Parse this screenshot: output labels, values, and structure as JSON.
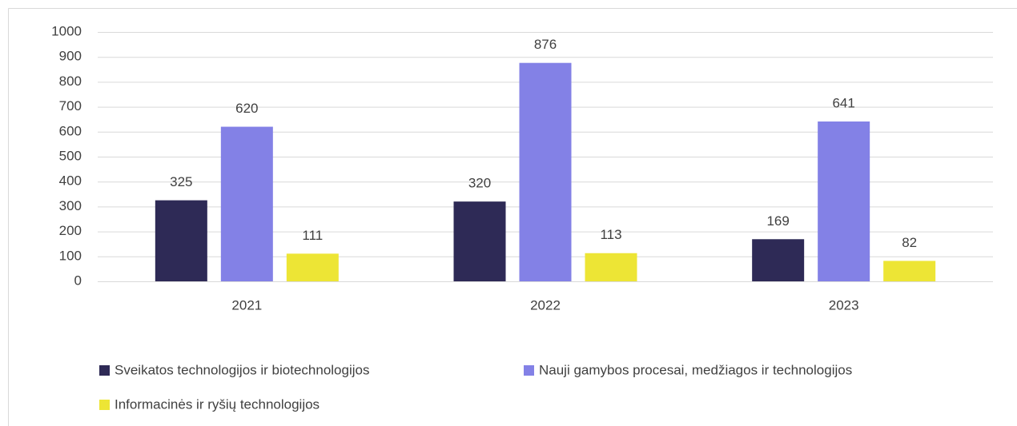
{
  "chart_data": {
    "type": "bar",
    "categories": [
      "2021",
      "2022",
      "2023"
    ],
    "series": [
      {
        "name": "Sveikatos technologijos ir biotechnologijos",
        "color": "#2e2a56",
        "values": [
          325,
          320,
          169
        ]
      },
      {
        "name": "Nauji gamybos procesai, medžiagos ir technologijos",
        "color": "#8381e6",
        "values": [
          620,
          876,
          641
        ]
      },
      {
        "name": "Informacinės ir ryšių technologijos",
        "color": "#ede535",
        "values": [
          111,
          113,
          82
        ]
      }
    ],
    "ylim": [
      0,
      1000
    ],
    "yticks": [
      0,
      100,
      200,
      300,
      400,
      500,
      600,
      700,
      800,
      900,
      1000
    ],
    "grid": true,
    "legend": "bottom"
  }
}
